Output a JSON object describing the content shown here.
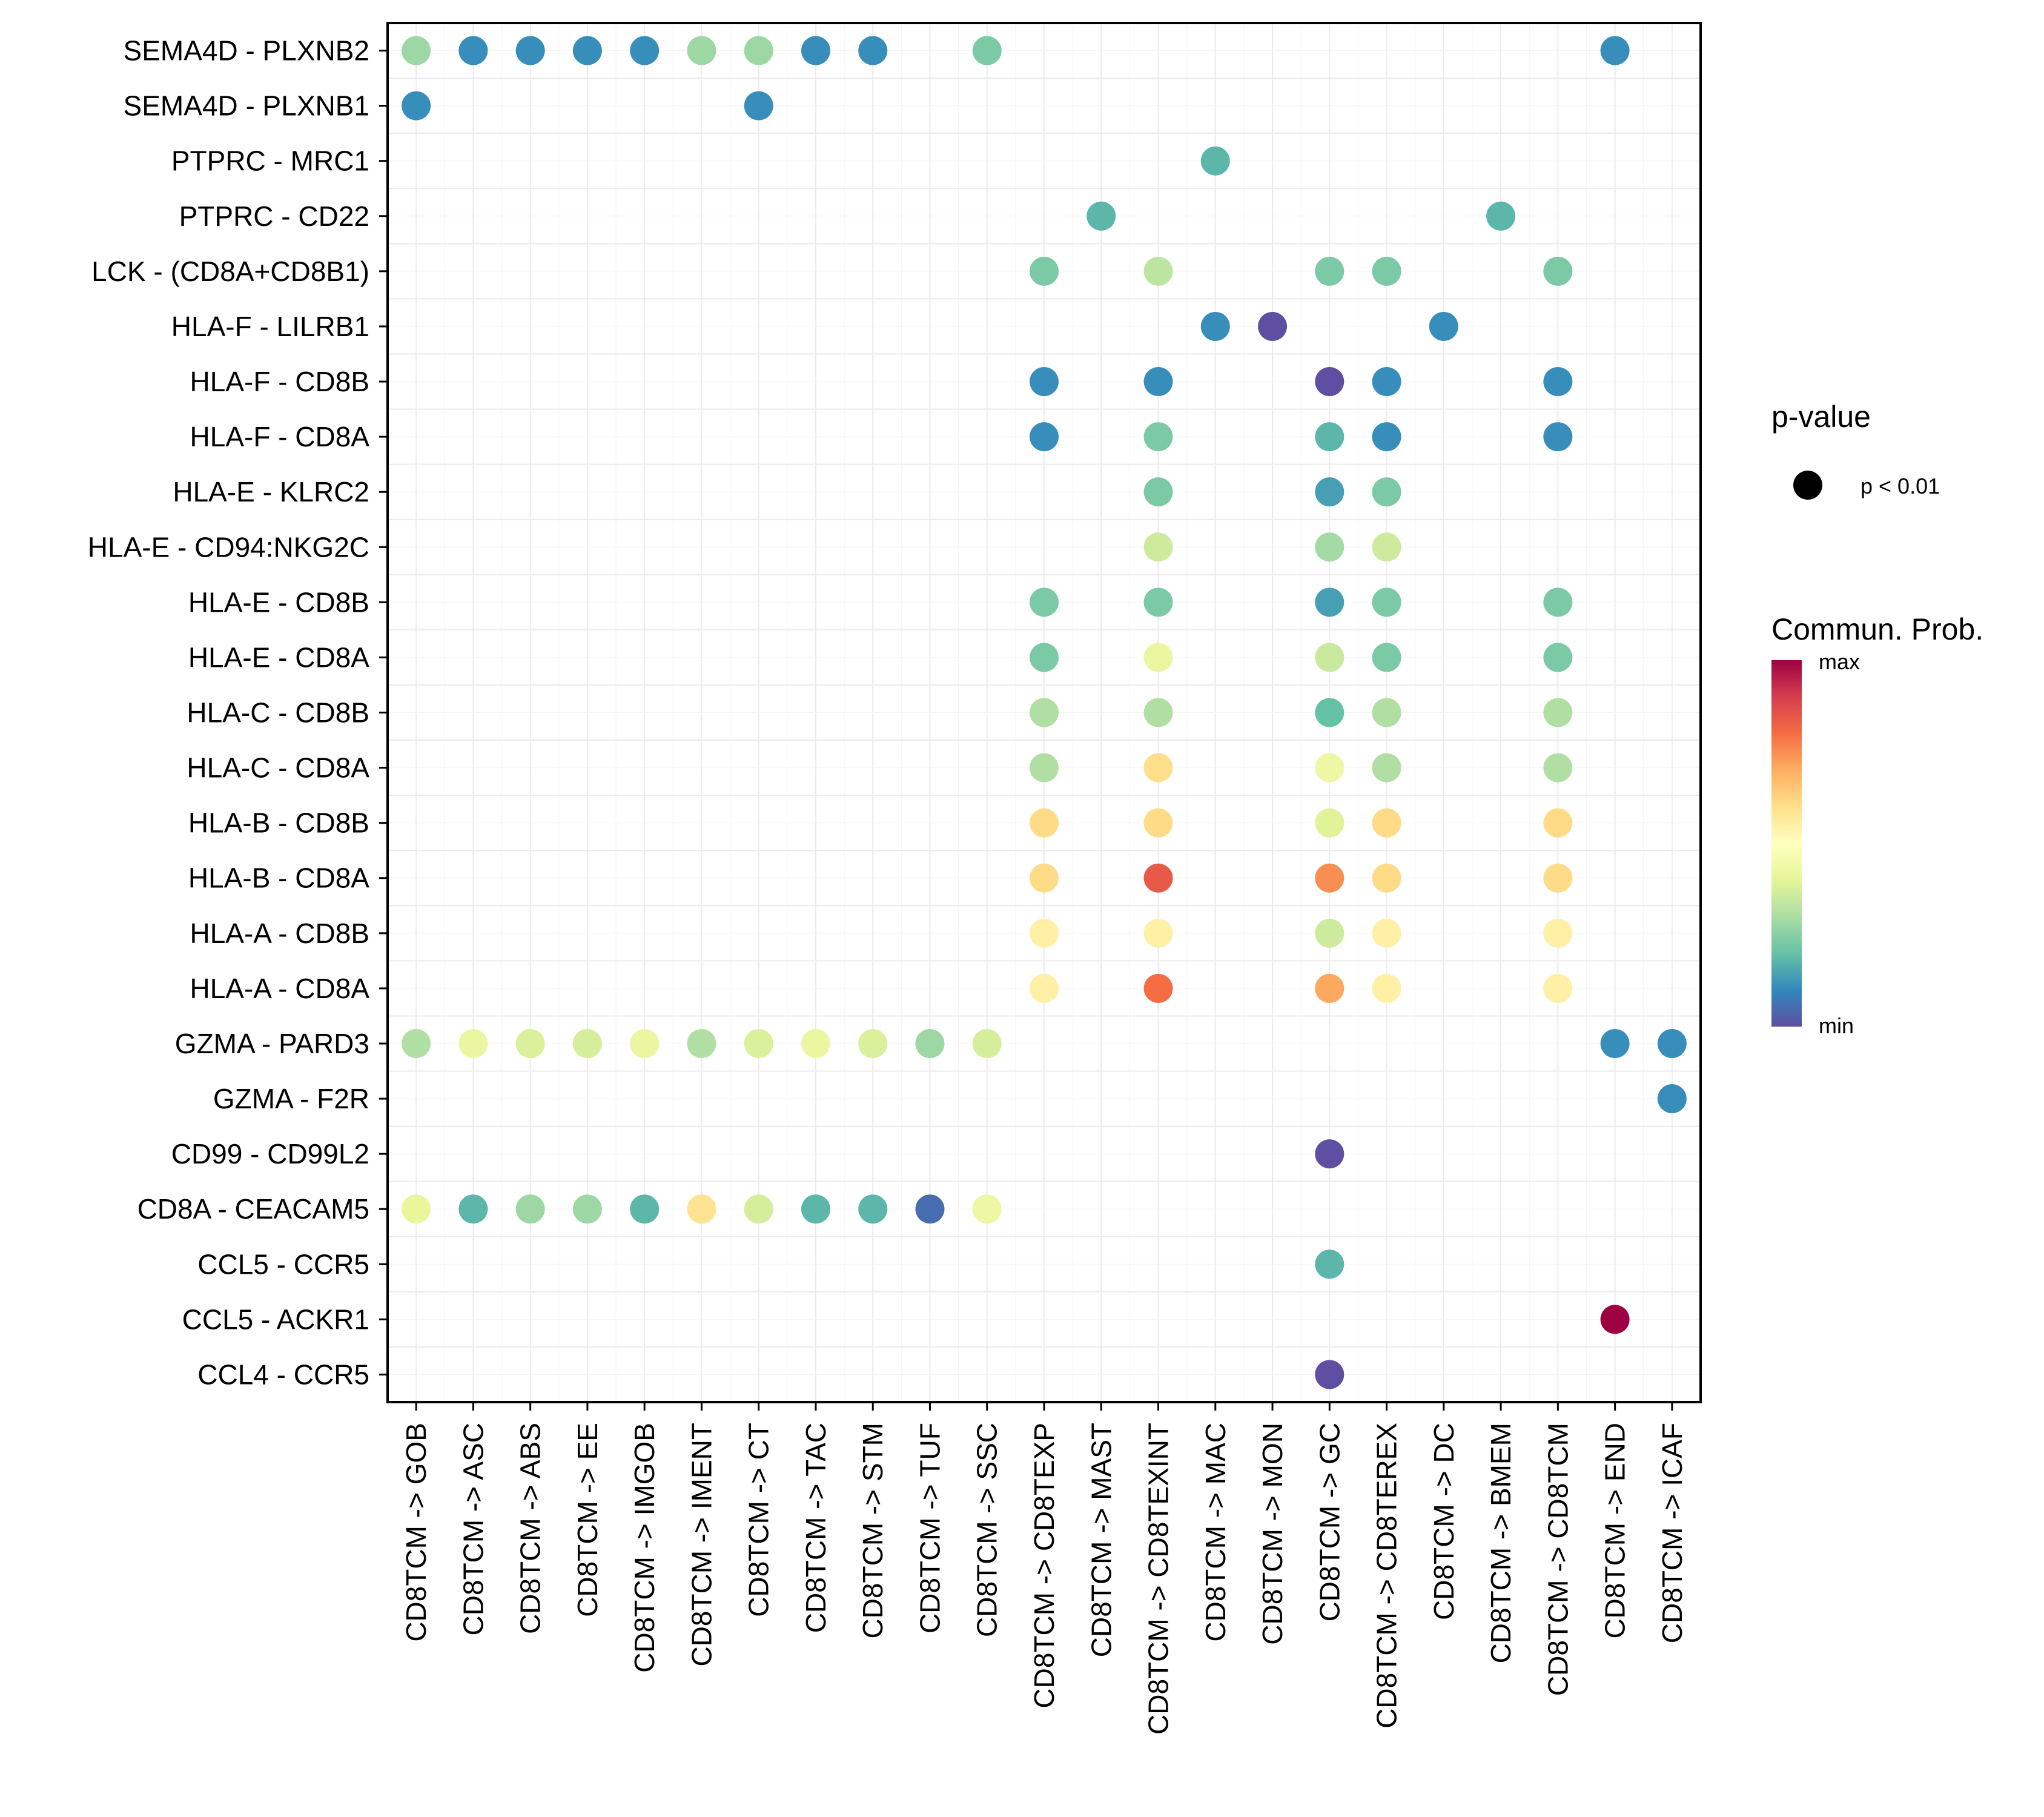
{
  "chart_data": {
    "type": "scatter",
    "subtype": "dot-matrix",
    "title": "",
    "xlabel": "",
    "ylabel": "",
    "grid": true,
    "x_categories": [
      "CD8TCM -> GOB",
      "CD8TCM -> ASC",
      "CD8TCM -> ABS",
      "CD8TCM -> EE",
      "CD8TCM -> IMGOB",
      "CD8TCM -> IMENT",
      "CD8TCM -> CT",
      "CD8TCM -> TAC",
      "CD8TCM -> STM",
      "CD8TCM -> TUF",
      "CD8TCM -> SSC",
      "CD8TCM -> CD8TEXP",
      "CD8TCM -> MAST",
      "CD8TCM -> CD8TEXINT",
      "CD8TCM -> MAC",
      "CD8TCM -> MON",
      "CD8TCM -> GC",
      "CD8TCM -> CD8TEREX",
      "CD8TCM -> DC",
      "CD8TCM -> BMEM",
      "CD8TCM -> CD8TCM",
      "CD8TCM -> END",
      "CD8TCM -> ICAF"
    ],
    "y_categories": [
      "SEMA4D - PLXNB2",
      "SEMA4D - PLXNB1",
      "PTPRC - MRC1",
      "PTPRC - CD22",
      "LCK - (CD8A+CD8B1)",
      "HLA-F - LILRB1",
      "HLA-F - CD8B",
      "HLA-F - CD8A",
      "HLA-E - KLRC2",
      "HLA-E - CD94:NKG2C",
      "HLA-E - CD8B",
      "HLA-E - CD8A",
      "HLA-C - CD8B",
      "HLA-C - CD8A",
      "HLA-B - CD8B",
      "HLA-B - CD8A",
      "HLA-A - CD8B",
      "HLA-A - CD8A",
      "GZMA - PARD3",
      "GZMA - F2R",
      "CD99 - CD99L2",
      "CD8A - CEACAM5",
      "CCL5 - CCR5",
      "CCL5 - ACKR1",
      "CCL4 - CCR5"
    ],
    "value_scale": "relative communication probability (0 = min, 1 = max)",
    "points": [
      {
        "x": "CD8TCM -> GOB",
        "y": "SEMA4D - PLXNB2",
        "prob": 0.28
      },
      {
        "x": "CD8TCM -> ASC",
        "y": "SEMA4D - PLXNB2",
        "prob": 0.11
      },
      {
        "x": "CD8TCM -> ABS",
        "y": "SEMA4D - PLXNB2",
        "prob": 0.11
      },
      {
        "x": "CD8TCM -> EE",
        "y": "SEMA4D - PLXNB2",
        "prob": 0.11
      },
      {
        "x": "CD8TCM -> IMGOB",
        "y": "SEMA4D - PLXNB2",
        "prob": 0.11
      },
      {
        "x": "CD8TCM -> IMENT",
        "y": "SEMA4D - PLXNB2",
        "prob": 0.28
      },
      {
        "x": "CD8TCM -> CT",
        "y": "SEMA4D - PLXNB2",
        "prob": 0.28
      },
      {
        "x": "CD8TCM -> TAC",
        "y": "SEMA4D - PLXNB2",
        "prob": 0.11
      },
      {
        "x": "CD8TCM -> STM",
        "y": "SEMA4D - PLXNB2",
        "prob": 0.11
      },
      {
        "x": "CD8TCM -> SSC",
        "y": "SEMA4D - PLXNB2",
        "prob": 0.23
      },
      {
        "x": "CD8TCM -> END",
        "y": "SEMA4D - PLXNB2",
        "prob": 0.11
      },
      {
        "x": "CD8TCM -> GOB",
        "y": "SEMA4D - PLXNB1",
        "prob": 0.11
      },
      {
        "x": "CD8TCM -> CT",
        "y": "SEMA4D - PLXNB1",
        "prob": 0.11
      },
      {
        "x": "CD8TCM -> MAC",
        "y": "PTPRC - MRC1",
        "prob": 0.18
      },
      {
        "x": "CD8TCM -> MAST",
        "y": "PTPRC - CD22",
        "prob": 0.18
      },
      {
        "x": "CD8TCM -> BMEM",
        "y": "PTPRC - CD22",
        "prob": 0.18
      },
      {
        "x": "CD8TCM -> CD8TEXP",
        "y": "LCK - (CD8A+CD8B1)",
        "prob": 0.23
      },
      {
        "x": "CD8TCM -> CD8TEXINT",
        "y": "LCK - (CD8A+CD8B1)",
        "prob": 0.33
      },
      {
        "x": "CD8TCM -> GC",
        "y": "LCK - (CD8A+CD8B1)",
        "prob": 0.23
      },
      {
        "x": "CD8TCM -> CD8TEREX",
        "y": "LCK - (CD8A+CD8B1)",
        "prob": 0.23
      },
      {
        "x": "CD8TCM -> CD8TCM",
        "y": "LCK - (CD8A+CD8B1)",
        "prob": 0.23
      },
      {
        "x": "CD8TCM -> MAC",
        "y": "HLA-F - LILRB1",
        "prob": 0.11
      },
      {
        "x": "CD8TCM -> MON",
        "y": "HLA-F - LILRB1",
        "prob": 0.0
      },
      {
        "x": "CD8TCM -> DC",
        "y": "HLA-F - LILRB1",
        "prob": 0.11
      },
      {
        "x": "CD8TCM -> CD8TEXP",
        "y": "HLA-F - CD8B",
        "prob": 0.11
      },
      {
        "x": "CD8TCM -> CD8TEXINT",
        "y": "HLA-F - CD8B",
        "prob": 0.11
      },
      {
        "x": "CD8TCM -> GC",
        "y": "HLA-F - CD8B",
        "prob": 0.0
      },
      {
        "x": "CD8TCM -> CD8TEREX",
        "y": "HLA-F - CD8B",
        "prob": 0.11
      },
      {
        "x": "CD8TCM -> CD8TCM",
        "y": "HLA-F - CD8B",
        "prob": 0.11
      },
      {
        "x": "CD8TCM -> CD8TEXP",
        "y": "HLA-F - CD8A",
        "prob": 0.11
      },
      {
        "x": "CD8TCM -> CD8TEXINT",
        "y": "HLA-F - CD8A",
        "prob": 0.23
      },
      {
        "x": "CD8TCM -> GC",
        "y": "HLA-F - CD8A",
        "prob": 0.18
      },
      {
        "x": "CD8TCM -> CD8TEREX",
        "y": "HLA-F - CD8A",
        "prob": 0.11
      },
      {
        "x": "CD8TCM -> CD8TCM",
        "y": "HLA-F - CD8A",
        "prob": 0.11
      },
      {
        "x": "CD8TCM -> CD8TEXINT",
        "y": "HLA-E - KLRC2",
        "prob": 0.23
      },
      {
        "x": "CD8TCM -> GC",
        "y": "HLA-E - KLRC2",
        "prob": 0.14
      },
      {
        "x": "CD8TCM -> CD8TEREX",
        "y": "HLA-E - KLRC2",
        "prob": 0.23
      },
      {
        "x": "CD8TCM -> CD8TEXINT",
        "y": "HLA-E - CD94:NKG2C",
        "prob": 0.36
      },
      {
        "x": "CD8TCM -> GC",
        "y": "HLA-E - CD94:NKG2C",
        "prob": 0.29
      },
      {
        "x": "CD8TCM -> CD8TEREX",
        "y": "HLA-E - CD94:NKG2C",
        "prob": 0.36
      },
      {
        "x": "CD8TCM -> CD8TEXP",
        "y": "HLA-E - CD8B",
        "prob": 0.23
      },
      {
        "x": "CD8TCM -> CD8TEXINT",
        "y": "HLA-E - CD8B",
        "prob": 0.23
      },
      {
        "x": "CD8TCM -> GC",
        "y": "HLA-E - CD8B",
        "prob": 0.14
      },
      {
        "x": "CD8TCM -> CD8TEREX",
        "y": "HLA-E - CD8B",
        "prob": 0.23
      },
      {
        "x": "CD8TCM -> CD8TCM",
        "y": "HLA-E - CD8B",
        "prob": 0.23
      },
      {
        "x": "CD8TCM -> CD8TEXP",
        "y": "HLA-E - CD8A",
        "prob": 0.23
      },
      {
        "x": "CD8TCM -> CD8TEXINT",
        "y": "HLA-E - CD8A",
        "prob": 0.42
      },
      {
        "x": "CD8TCM -> GC",
        "y": "HLA-E - CD8A",
        "prob": 0.35
      },
      {
        "x": "CD8TCM -> CD8TEREX",
        "y": "HLA-E - CD8A",
        "prob": 0.23
      },
      {
        "x": "CD8TCM -> CD8TCM",
        "y": "HLA-E - CD8A",
        "prob": 0.23
      },
      {
        "x": "CD8TCM -> CD8TEXP",
        "y": "HLA-C - CD8B",
        "prob": 0.31
      },
      {
        "x": "CD8TCM -> CD8TEXINT",
        "y": "HLA-C - CD8B",
        "prob": 0.31
      },
      {
        "x": "CD8TCM -> GC",
        "y": "HLA-C - CD8B",
        "prob": 0.2
      },
      {
        "x": "CD8TCM -> CD8TEREX",
        "y": "HLA-C - CD8B",
        "prob": 0.31
      },
      {
        "x": "CD8TCM -> CD8TCM",
        "y": "HLA-C - CD8B",
        "prob": 0.31
      },
      {
        "x": "CD8TCM -> CD8TEXP",
        "y": "HLA-C - CD8A",
        "prob": 0.31
      },
      {
        "x": "CD8TCM -> CD8TEXINT",
        "y": "HLA-C - CD8A",
        "prob": 0.6
      },
      {
        "x": "CD8TCM -> GC",
        "y": "HLA-C - CD8A",
        "prob": 0.43
      },
      {
        "x": "CD8TCM -> CD8TEREX",
        "y": "HLA-C - CD8A",
        "prob": 0.31
      },
      {
        "x": "CD8TCM -> CD8TCM",
        "y": "HLA-C - CD8A",
        "prob": 0.31
      },
      {
        "x": "CD8TCM -> CD8TEXP",
        "y": "HLA-B - CD8B",
        "prob": 0.61
      },
      {
        "x": "CD8TCM -> CD8TEXINT",
        "y": "HLA-B - CD8B",
        "prob": 0.61
      },
      {
        "x": "CD8TCM -> GC",
        "y": "HLA-B - CD8B",
        "prob": 0.39
      },
      {
        "x": "CD8TCM -> CD8TEREX",
        "y": "HLA-B - CD8B",
        "prob": 0.61
      },
      {
        "x": "CD8TCM -> CD8TCM",
        "y": "HLA-B - CD8B",
        "prob": 0.61
      },
      {
        "x": "CD8TCM -> CD8TEXP",
        "y": "HLA-B - CD8A",
        "prob": 0.61
      },
      {
        "x": "CD8TCM -> CD8TEXINT",
        "y": "HLA-B - CD8A",
        "prob": 0.84
      },
      {
        "x": "CD8TCM -> GC",
        "y": "HLA-B - CD8A",
        "prob": 0.75
      },
      {
        "x": "CD8TCM -> CD8TEREX",
        "y": "HLA-B - CD8A",
        "prob": 0.61
      },
      {
        "x": "CD8TCM -> CD8TCM",
        "y": "HLA-B - CD8A",
        "prob": 0.61
      },
      {
        "x": "CD8TCM -> CD8TEXP",
        "y": "HLA-A - CD8B",
        "prob": 0.55
      },
      {
        "x": "CD8TCM -> CD8TEXINT",
        "y": "HLA-A - CD8B",
        "prob": 0.55
      },
      {
        "x": "CD8TCM -> GC",
        "y": "HLA-A - CD8B",
        "prob": 0.36
      },
      {
        "x": "CD8TCM -> CD8TEREX",
        "y": "HLA-A - CD8B",
        "prob": 0.55
      },
      {
        "x": "CD8TCM -> CD8TCM",
        "y": "HLA-A - CD8B",
        "prob": 0.55
      },
      {
        "x": "CD8TCM -> CD8TEXP",
        "y": "HLA-A - CD8A",
        "prob": 0.55
      },
      {
        "x": "CD8TCM -> CD8TEXINT",
        "y": "HLA-A - CD8A",
        "prob": 0.8
      },
      {
        "x": "CD8TCM -> GC",
        "y": "HLA-A - CD8A",
        "prob": 0.71
      },
      {
        "x": "CD8TCM -> CD8TEREX",
        "y": "HLA-A - CD8A",
        "prob": 0.55
      },
      {
        "x": "CD8TCM -> CD8TCM",
        "y": "HLA-A - CD8A",
        "prob": 0.55
      },
      {
        "x": "CD8TCM -> GOB",
        "y": "GZMA - PARD3",
        "prob": 0.31
      },
      {
        "x": "CD8TCM -> ASC",
        "y": "GZMA - PARD3",
        "prob": 0.42
      },
      {
        "x": "CD8TCM -> ABS",
        "y": "GZMA - PARD3",
        "prob": 0.38
      },
      {
        "x": "CD8TCM -> EE",
        "y": "GZMA - PARD3",
        "prob": 0.37
      },
      {
        "x": "CD8TCM -> IMGOB",
        "y": "GZMA - PARD3",
        "prob": 0.42
      },
      {
        "x": "CD8TCM -> IMENT",
        "y": "GZMA - PARD3",
        "prob": 0.31
      },
      {
        "x": "CD8TCM -> CT",
        "y": "GZMA - PARD3",
        "prob": 0.38
      },
      {
        "x": "CD8TCM -> TAC",
        "y": "GZMA - PARD3",
        "prob": 0.42
      },
      {
        "x": "CD8TCM -> STM",
        "y": "GZMA - PARD3",
        "prob": 0.38
      },
      {
        "x": "CD8TCM -> TUF",
        "y": "GZMA - PARD3",
        "prob": 0.28
      },
      {
        "x": "CD8TCM -> SSC",
        "y": "GZMA - PARD3",
        "prob": 0.37
      },
      {
        "x": "CD8TCM -> END",
        "y": "GZMA - PARD3",
        "prob": 0.11
      },
      {
        "x": "CD8TCM -> ICAF",
        "y": "GZMA - PARD3",
        "prob": 0.11
      },
      {
        "x": "CD8TCM -> ICAF",
        "y": "GZMA - F2R",
        "prob": 0.11
      },
      {
        "x": "CD8TCM -> GC",
        "y": "CD99 - CD99L2",
        "prob": 0.0
      },
      {
        "x": "CD8TCM -> GOB",
        "y": "CD8A - CEACAM5",
        "prob": 0.41
      },
      {
        "x": "CD8TCM -> ASC",
        "y": "CD8A - CEACAM5",
        "prob": 0.18
      },
      {
        "x": "CD8TCM -> ABS",
        "y": "CD8A - CEACAM5",
        "prob": 0.28
      },
      {
        "x": "CD8TCM -> EE",
        "y": "CD8A - CEACAM5",
        "prob": 0.28
      },
      {
        "x": "CD8TCM -> IMGOB",
        "y": "CD8A - CEACAM5",
        "prob": 0.18
      },
      {
        "x": "CD8TCM -> IMENT",
        "y": "CD8A - CEACAM5",
        "prob": 0.59
      },
      {
        "x": "CD8TCM -> CT",
        "y": "CD8A - CEACAM5",
        "prob": 0.37
      },
      {
        "x": "CD8TCM -> TAC",
        "y": "CD8A - CEACAM5",
        "prob": 0.18
      },
      {
        "x": "CD8TCM -> STM",
        "y": "CD8A - CEACAM5",
        "prob": 0.18
      },
      {
        "x": "CD8TCM -> TUF",
        "y": "CD8A - CEACAM5",
        "prob": 0.05
      },
      {
        "x": "CD8TCM -> SSC",
        "y": "CD8A - CEACAM5",
        "prob": 0.43
      },
      {
        "x": "CD8TCM -> GC",
        "y": "CCL5 - CCR5",
        "prob": 0.18
      },
      {
        "x": "CD8TCM -> END",
        "y": "CCL5 - ACKR1",
        "prob": 1.0
      },
      {
        "x": "CD8TCM -> GC",
        "y": "CCL4 - CCR5",
        "prob": 0.0
      }
    ],
    "legend": {
      "pvalue": {
        "title": "p-value",
        "entries": [
          "p < 0.01"
        ]
      },
      "colorbar": {
        "title": "Commun. Prob.",
        "max_label": "max",
        "min_label": "min",
        "palette": [
          "#5E4FA2",
          "#3288BD",
          "#66C2A5",
          "#ABDDA4",
          "#E6F598",
          "#FFFFBF",
          "#FEE08B",
          "#FDAE61",
          "#F46D43",
          "#D53E4F",
          "#9E0142"
        ]
      },
      "placement": "right"
    }
  }
}
